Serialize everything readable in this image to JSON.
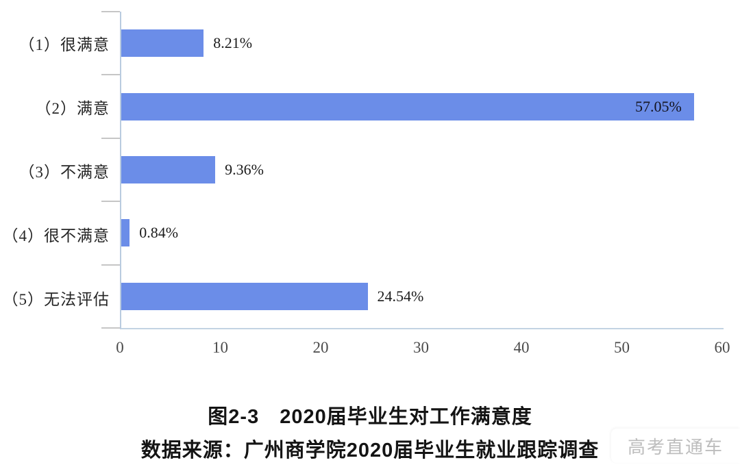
{
  "caption": {
    "title": "图2-3　2020届毕业生对工作满意度",
    "source": "数据来源：广州商学院2020届毕业生就业跟踪调查"
  },
  "watermark": {
    "text": "高考直通车"
  },
  "colors": {
    "bar": "#6b8de8",
    "y_axis": "#b9cbdf",
    "x_axis": "#c3d3e3",
    "boundary_tick": "#c6c6c6",
    "label_text": "#262626",
    "tick_text": "#4a4a4a",
    "watermark_text": "#bdbdbd"
  },
  "chart_data": {
    "type": "bar",
    "orientation": "horizontal",
    "title": "图2-3　2020届毕业生对工作满意度",
    "source": "数据来源：广州商学院2020届毕业生就业跟踪调查",
    "categories": [
      "（1）很满意",
      "（2）满意",
      "（3）不满意",
      "（4）很不满意",
      "（5）无法评估"
    ],
    "values": [
      8.21,
      57.05,
      9.36,
      0.84,
      24.54
    ],
    "data_labels": [
      "8.21%",
      "57.05%",
      "9.36%",
      "0.84%",
      "24.54%"
    ],
    "xlim": [
      0,
      60
    ],
    "xticks": [
      0,
      10,
      20,
      30,
      40,
      50,
      60
    ],
    "xlabel": "",
    "ylabel": "",
    "grid": false,
    "legend": null,
    "bar_color": "#6b8de8"
  }
}
